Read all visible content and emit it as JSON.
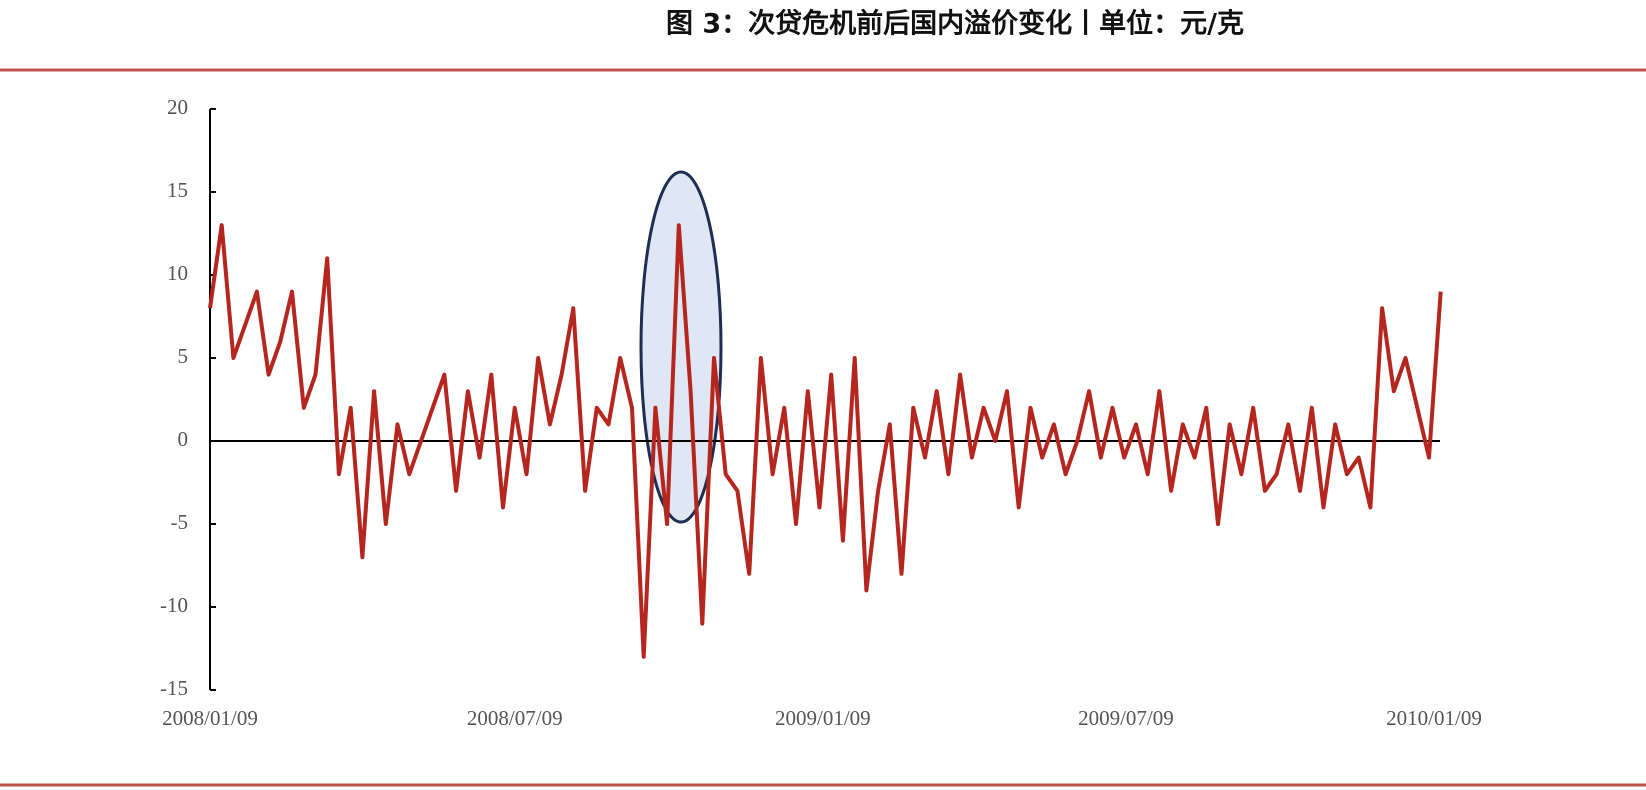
{
  "chart_data": {
    "type": "line",
    "title": "图 3：次贷危机前后国内溢价变化丨单位：元/克",
    "x": [
      "2008/01/09",
      "2008/01/16",
      "2008/01/23",
      "2008/01/30",
      "2008/02/06",
      "2008/02/13",
      "2008/02/20",
      "2008/02/27",
      "2008/03/05",
      "2008/03/12",
      "2008/03/19",
      "2008/03/26",
      "2008/04/02",
      "2008/04/09",
      "2008/04/16",
      "2008/04/23",
      "2008/04/30",
      "2008/05/07",
      "2008/05/14",
      "2008/05/21",
      "2008/05/28",
      "2008/06/04",
      "2008/06/11",
      "2008/06/18",
      "2008/06/25",
      "2008/07/02",
      "2008/07/09",
      "2008/07/16",
      "2008/07/23",
      "2008/07/30",
      "2008/08/06",
      "2008/08/13",
      "2008/08/20",
      "2008/08/27",
      "2008/09/03",
      "2008/09/10",
      "2008/09/17",
      "2008/09/24",
      "2008/10/01",
      "2008/10/08",
      "2008/10/15",
      "2008/10/22",
      "2008/10/29",
      "2008/11/05",
      "2008/11/12",
      "2008/11/19",
      "2008/11/26",
      "2008/12/03",
      "2008/12/10",
      "2008/12/17",
      "2008/12/24",
      "2008/12/31",
      "2009/01/07",
      "2009/01/14",
      "2009/01/21",
      "2009/01/28",
      "2009/02/04",
      "2009/02/11",
      "2009/02/18",
      "2009/02/25",
      "2009/03/04",
      "2009/03/11",
      "2009/03/18",
      "2009/03/25",
      "2009/04/01",
      "2009/04/08",
      "2009/04/15",
      "2009/04/22",
      "2009/04/29",
      "2009/05/06",
      "2009/05/13",
      "2009/05/20",
      "2009/05/27",
      "2009/06/03",
      "2009/06/10",
      "2009/06/17",
      "2009/06/24",
      "2009/07/01",
      "2009/07/08",
      "2009/07/15",
      "2009/07/22",
      "2009/07/29",
      "2009/08/05",
      "2009/08/12",
      "2009/08/19",
      "2009/08/26",
      "2009/09/02",
      "2009/09/09",
      "2009/09/16",
      "2009/09/23",
      "2009/09/30",
      "2009/10/07",
      "2009/10/14",
      "2009/10/21",
      "2009/10/28",
      "2009/11/04",
      "2009/11/11",
      "2009/11/18",
      "2009/11/25",
      "2009/12/02",
      "2009/12/09",
      "2009/12/16",
      "2009/12/23",
      "2009/12/30",
      "2010/01/06",
      "2010/01/13"
    ],
    "values": [
      8,
      13,
      5,
      7,
      9,
      4,
      6,
      9,
      2,
      4,
      11,
      -2,
      2,
      -7,
      3,
      -5,
      1,
      -2,
      0,
      2,
      4,
      -3,
      3,
      -1,
      4,
      -4,
      2,
      -2,
      5,
      1,
      4,
      8,
      -3,
      2,
      1,
      5,
      2,
      -13,
      2,
      -5,
      13,
      3,
      -11,
      5,
      -2,
      -3,
      -8,
      5,
      -2,
      2,
      -5,
      3,
      -4,
      4,
      -6,
      5,
      -9,
      -3,
      1,
      -8,
      2,
      -1,
      3,
      -2,
      4,
      -1,
      2,
      0,
      3,
      -4,
      2,
      -1,
      1,
      -2,
      0,
      3,
      -1,
      2,
      -1,
      1,
      -2,
      3,
      -3,
      1,
      -1,
      2,
      -5,
      1,
      -2,
      2,
      -3,
      -2,
      1,
      -3,
      2,
      -4,
      1,
      -2,
      -1,
      -4,
      8,
      3,
      5,
      2,
      -1,
      9
    ],
    "color": "#b5261e",
    "ylim": [
      -15,
      20
    ],
    "yticks": [
      20,
      15,
      10,
      5,
      0,
      -5,
      -10,
      -15
    ],
    "xticks": [
      "2008/01/09",
      "2008/07/09",
      "2009/01/09",
      "2009/07/09",
      "2010/01/09"
    ]
  }
}
